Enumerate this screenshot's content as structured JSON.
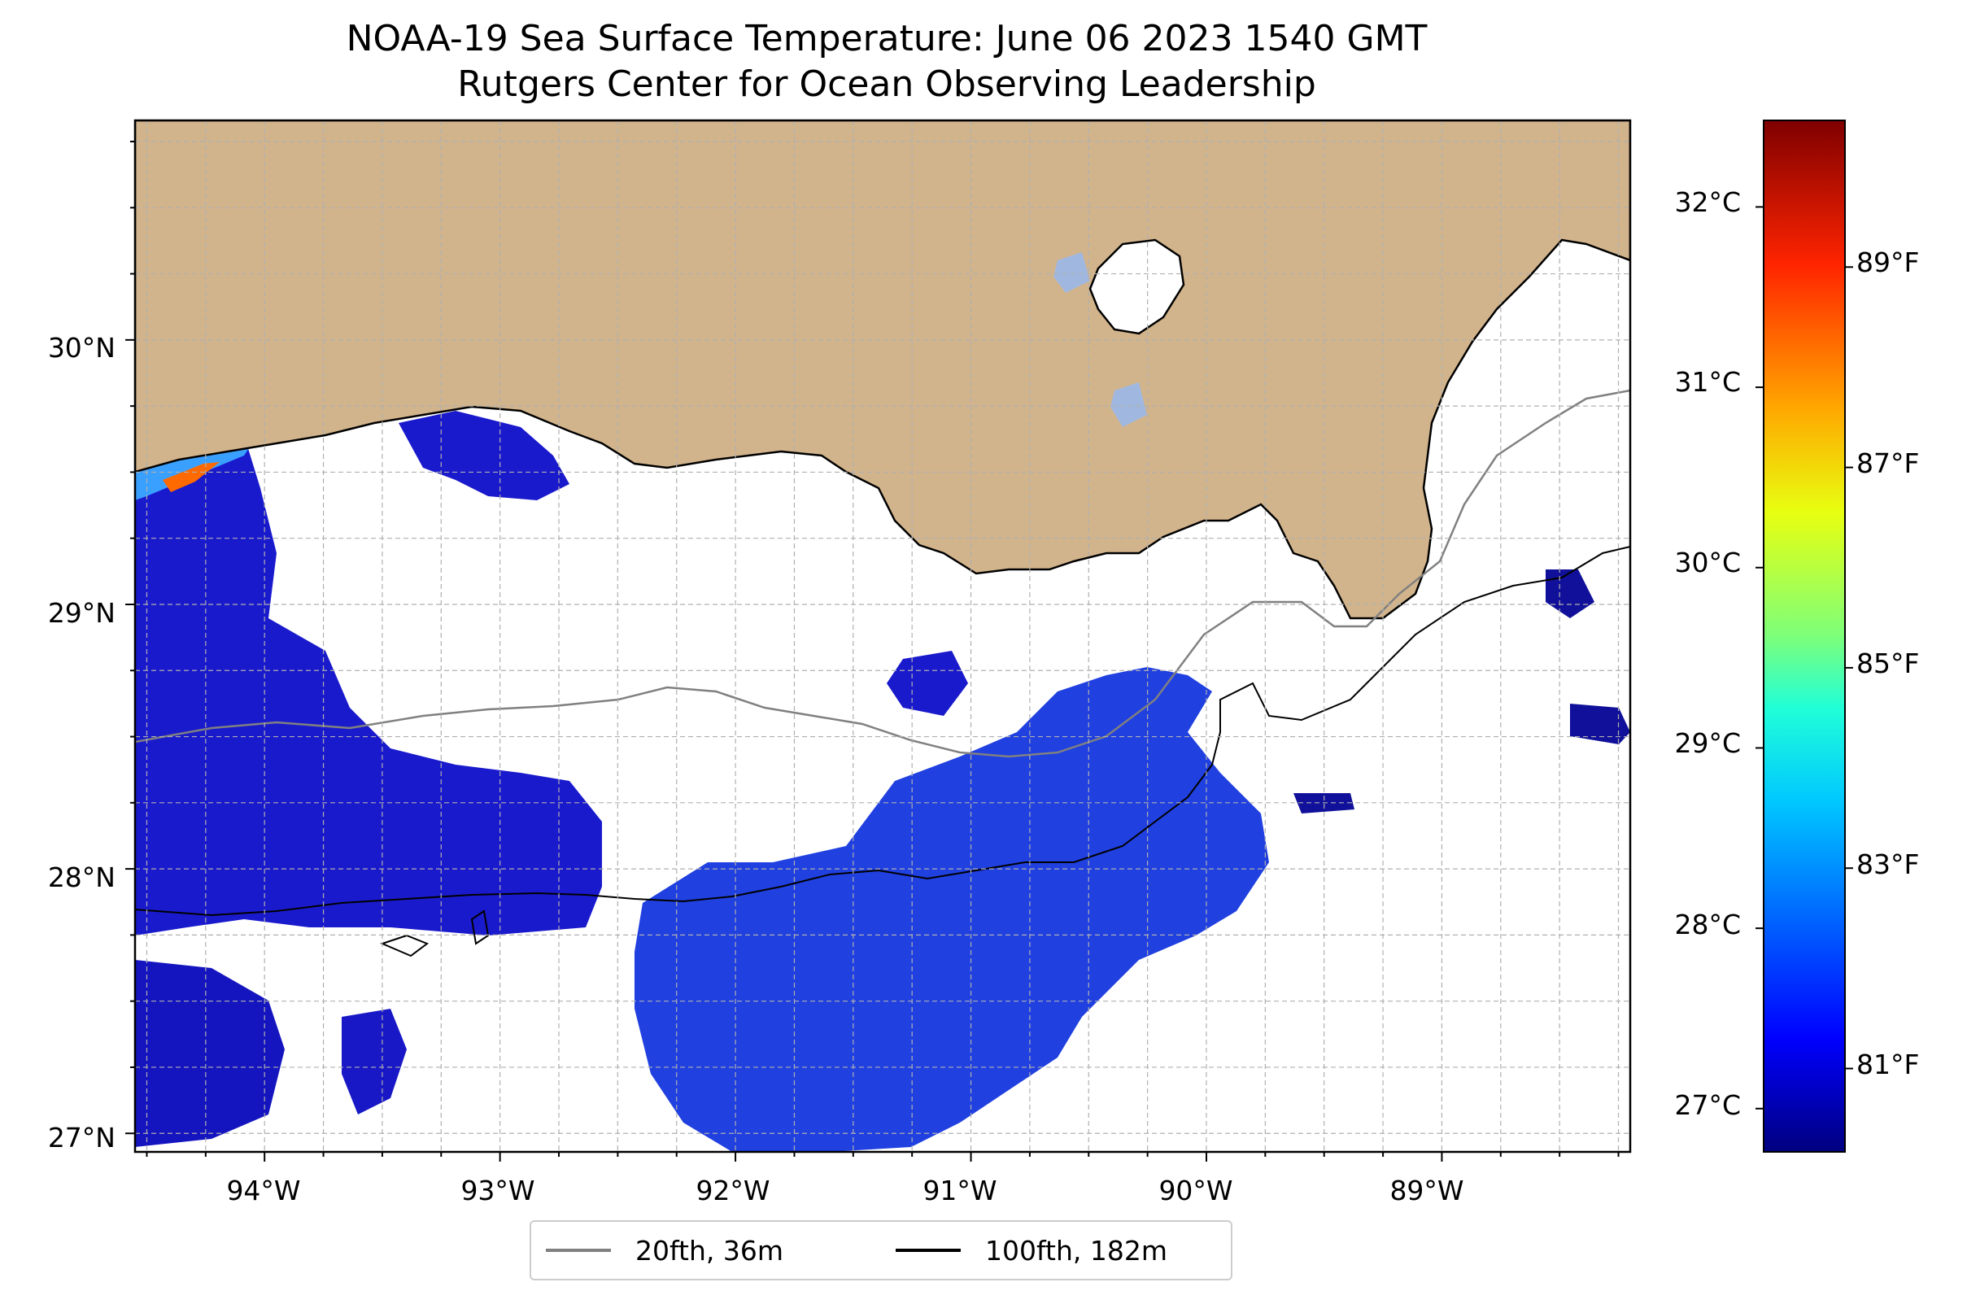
{
  "title": {
    "line1": "NOAA-19 Sea Surface Temperature: June 06 2023 1540 GMT",
    "line2": "Rutgers Center for Ocean Observing Leadership"
  },
  "map": {
    "projection": "PlateCarree",
    "lon_range": [
      -94.55,
      -88.2
    ],
    "lat_range": [
      26.93,
      30.83
    ],
    "lat_ticks": [
      "30°N",
      "29°N",
      "28°N",
      "27°N"
    ],
    "lon_ticks": [
      "94°W",
      "93°W",
      "92°W",
      "91°W",
      "90°W",
      "89°W"
    ],
    "gridlines": "dashed, every 0.25°",
    "land_color": "#d2b48c",
    "ocean_no_data_color": "#ffffff",
    "colormap": "jet",
    "cloud_mask": "white"
  },
  "colorbar": {
    "celsius_range": [
      26.76,
      32.48
    ],
    "celsius_ticks": [
      "32°C",
      "31°C",
      "30°C",
      "29°C",
      "28°C",
      "27°C"
    ],
    "fahrenheit_ticks": [
      "89°F",
      "87°F",
      "85°F",
      "83°F",
      "81°F"
    ]
  },
  "legend": {
    "items": [
      {
        "label": "20fth, 36m",
        "color": "#808080"
      },
      {
        "label": "100fth, 182m",
        "color": "#000000"
      }
    ]
  },
  "colors": {
    "land": "#d2b48c",
    "coast": "#000000",
    "isobath_20": "#808080",
    "isobath_100": "#000000",
    "sst_cool": "#1a1ac8",
    "sst_warm": "#ff3a00"
  }
}
